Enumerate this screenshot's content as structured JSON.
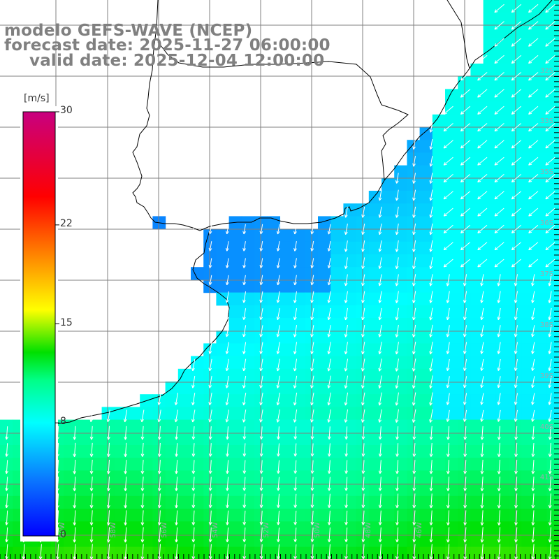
{
  "map": {
    "title_line1": "modelo GEFS-WAVE (NCEP)",
    "title_line2": "forecast date: 2025-11-27 06:00:00",
    "title_line3": "valid date: 2025-12-04 12:00:00",
    "variable": "wind speed and direction",
    "lon_range": [
      -66,
      -44
    ],
    "lat_range": [
      -47,
      -26
    ],
    "grid_step_deg": 2,
    "lat_labels": [
      "32S",
      "33S",
      "35S",
      "36S",
      "37S",
      "38S",
      "39S",
      "40S",
      "41S"
    ],
    "lon_labels": [
      "60W",
      "58W",
      "56W",
      "54W",
      "52W",
      "50W",
      "48W",
      "46W"
    ],
    "arrow_direction": "north-northeast wind (arrows pointing south-southwest)",
    "colors": {
      "land": "#ffffff",
      "coast": "#000000",
      "grid": "#808080",
      "arrow": "#ffffff",
      "title": "#808080"
    }
  },
  "colorbar": {
    "unit_label": "[m/s]",
    "min": 0,
    "max": 30,
    "ticks": [
      {
        "value": 30,
        "label": "30"
      },
      {
        "value": 22,
        "label": "22"
      },
      {
        "value": 15,
        "label": "15"
      },
      {
        "value": 8,
        "label": "8"
      },
      {
        "value": 0,
        "label": "0"
      }
    ],
    "gradient": [
      {
        "value": 0,
        "color": "#0000ff"
      },
      {
        "value": 4,
        "color": "#0a78ff"
      },
      {
        "value": 8,
        "color": "#00ffff"
      },
      {
        "value": 11,
        "color": "#00ff88"
      },
      {
        "value": 13,
        "color": "#00e000"
      },
      {
        "value": 16,
        "color": "#ffff00"
      },
      {
        "value": 20,
        "color": "#ff8000"
      },
      {
        "value": 24,
        "color": "#ff0000"
      },
      {
        "value": 30,
        "color": "#c80080"
      }
    ]
  }
}
